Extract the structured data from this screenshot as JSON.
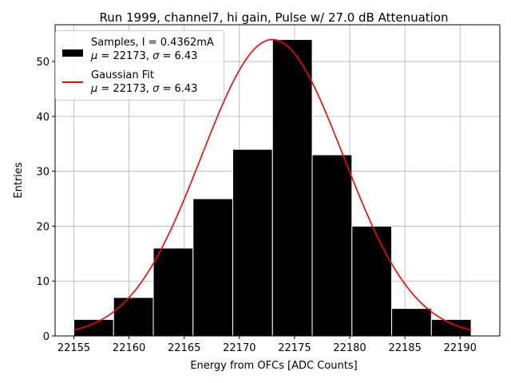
{
  "chart_data": {
    "type": "bar",
    "title": "Run 1999, channel7, hi gain, Pulse w/ 27.0 dB Attenuation",
    "xlabel": "Energy from OFCs [ADC Counts]",
    "ylabel": "Entries",
    "xlim": [
      22153.3,
      22193.6
    ],
    "ylim": [
      0,
      56.7
    ],
    "x_ticks": [
      22155,
      22160,
      22165,
      22170,
      22175,
      22180,
      22185,
      22190
    ],
    "y_ticks": [
      0,
      10,
      20,
      30,
      40,
      50
    ],
    "grid": true,
    "legend_placement": "top-left",
    "bins": [
      {
        "start": 22155.0,
        "end": 22158.6,
        "count": 3
      },
      {
        "start": 22158.6,
        "end": 22162.2,
        "count": 7
      },
      {
        "start": 22162.2,
        "end": 22165.8,
        "count": 16
      },
      {
        "start": 22165.8,
        "end": 22169.4,
        "count": 25
      },
      {
        "start": 22169.4,
        "end": 22173.0,
        "count": 34
      },
      {
        "start": 22173.0,
        "end": 22176.6,
        "count": 54
      },
      {
        "start": 22176.6,
        "end": 22180.2,
        "count": 33
      },
      {
        "start": 22180.2,
        "end": 22183.8,
        "count": 20
      },
      {
        "start": 22183.8,
        "end": 22187.4,
        "count": 5
      },
      {
        "start": 22187.4,
        "end": 22191.0,
        "count": 3
      }
    ],
    "series": [
      {
        "name": "Samples, I = 0.4362mA",
        "type": "histogram",
        "color": "#000000"
      },
      {
        "name": "Gaussian Fit",
        "type": "line",
        "color": "#ff0000",
        "fit": {
          "mu": 22173,
          "sigma": 6.43,
          "amplitude": 54,
          "x_range": [
            22155,
            22191
          ]
        }
      }
    ],
    "legend": [
      {
        "line1": "Samples, I = 0.4362mA",
        "mu_label": "μ",
        "sigma_label": "σ",
        "stats": "= 22173,",
        "sigma_val": "= 6.43"
      },
      {
        "line1": "Gaussian Fit",
        "mu_label": "μ",
        "sigma_label": "σ",
        "stats": "= 22173,",
        "sigma_val": "= 6.43"
      }
    ]
  }
}
